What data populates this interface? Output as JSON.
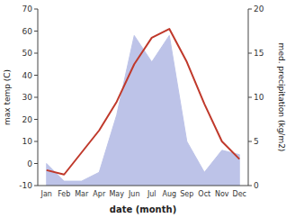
{
  "chart_data": {
    "type": "line",
    "categories": [
      "Jan",
      "Feb",
      "Mar",
      "Apr",
      "May",
      "Jun",
      "Jul",
      "Aug",
      "Sep",
      "Oct",
      "Nov",
      "Dec"
    ],
    "series": [
      {
        "type": "line",
        "color": "#c0392b",
        "values": [
          -3,
          -5,
          5,
          15,
          28,
          45,
          57,
          61,
          46,
          27,
          10,
          2
        ]
      },
      {
        "type": "area",
        "axis": "y2",
        "color": "#bdc3e8",
        "values": [
          2.5,
          0.5,
          0.5,
          1.5,
          8,
          17,
          14,
          17,
          5,
          1.5,
          4,
          3.5
        ]
      }
    ],
    "xlabel": "date (month)",
    "ylabel": "max temp (C)",
    "y2label": "med. precipitation (kg/m2)",
    "ylim": [
      -10,
      70
    ],
    "yticks": [
      -10,
      0,
      10,
      20,
      30,
      40,
      50,
      60,
      70
    ],
    "y2lim": [
      0,
      20
    ],
    "y2ticks": [
      0,
      5,
      10,
      15,
      20
    ],
    "grid": false
  }
}
